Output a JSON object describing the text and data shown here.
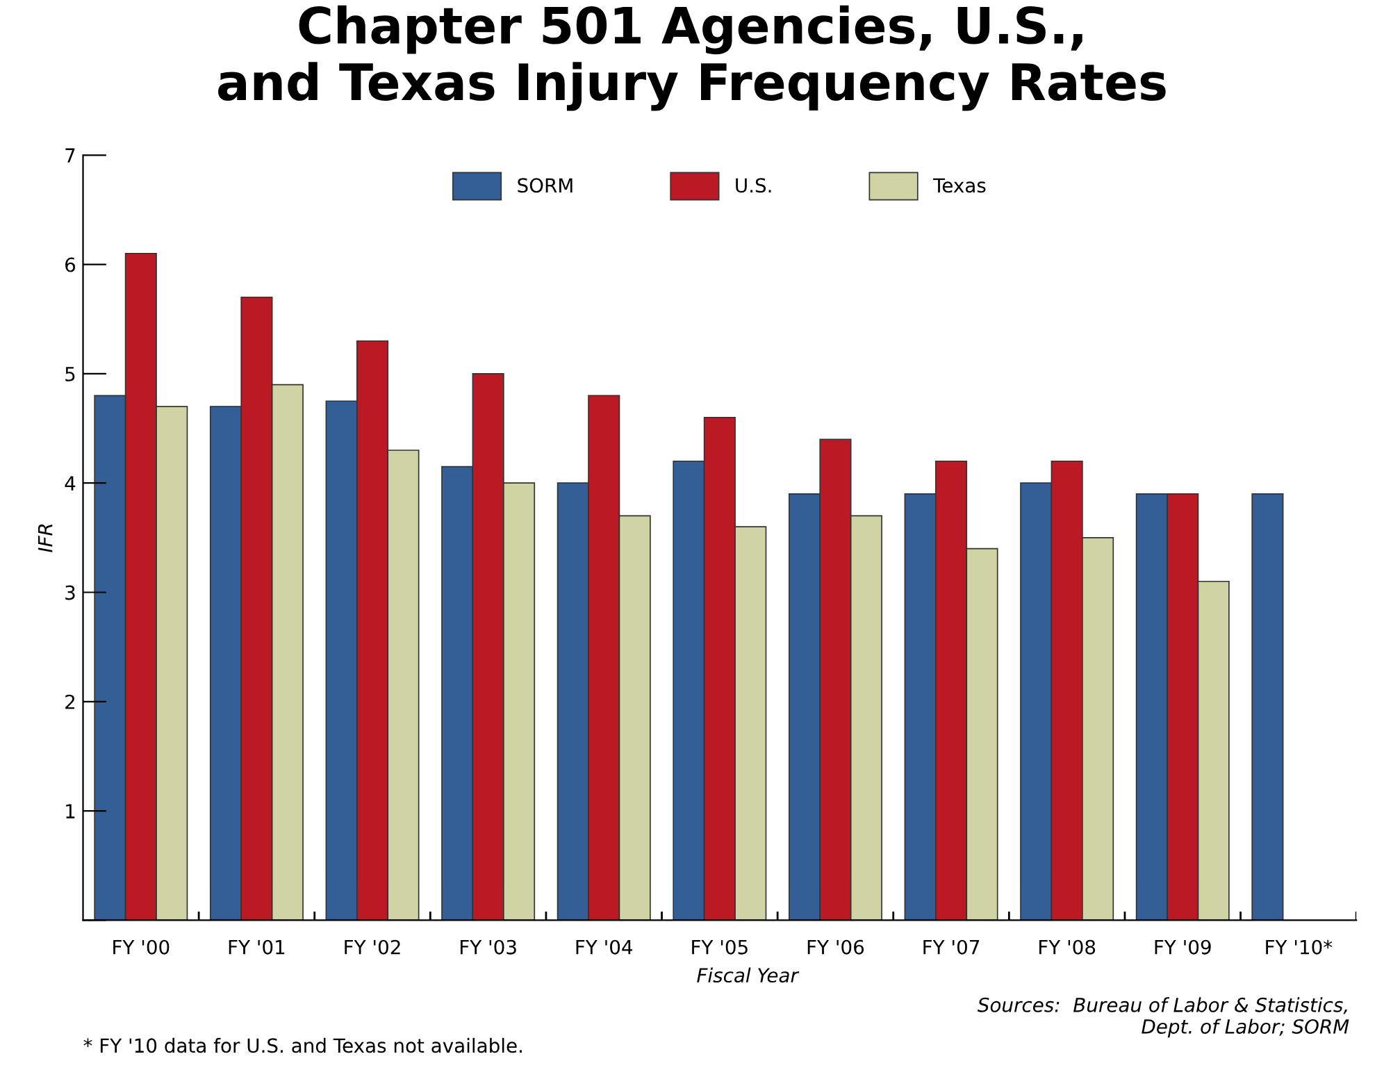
{
  "chart_data": {
    "type": "bar",
    "title": "Chapter 501 Agencies, U.S.,\nand Texas Injury Frequency Rates",
    "xlabel": "Fiscal Year",
    "ylabel": "IFR",
    "categories": [
      "FY '00",
      "FY '01",
      "FY '02",
      "FY '03",
      "FY '04",
      "FY '05",
      "FY '06",
      "FY '07",
      "FY '08",
      "FY '09",
      "FY '10*"
    ],
    "series": [
      {
        "name": "SORM",
        "color": "#335e96",
        "values": [
          4.8,
          4.7,
          4.75,
          4.15,
          4.0,
          4.2,
          3.9,
          3.9,
          4.0,
          3.9,
          3.9
        ]
      },
      {
        "name": "U.S.",
        "color": "#bb1a24",
        "values": [
          6.1,
          5.7,
          5.3,
          5.0,
          4.8,
          4.6,
          4.4,
          4.2,
          4.2,
          3.9,
          null
        ]
      },
      {
        "name": "Texas",
        "color": "#d0d3a3",
        "values": [
          4.7,
          4.9,
          4.3,
          4.0,
          3.7,
          3.6,
          3.7,
          3.4,
          3.5,
          3.1,
          null
        ]
      }
    ],
    "ylim": [
      0,
      7
    ],
    "yticks": [
      {
        "value": 0,
        "label": null
      },
      1,
      2,
      3,
      4,
      5,
      6,
      7
    ],
    "grid": false,
    "legend": "top",
    "annotations": [
      "Sources:  Bureau of Labor & Statistics,\nDept. of Labor; SORM",
      "* FY '10 data for U.S. and Texas not available."
    ]
  }
}
